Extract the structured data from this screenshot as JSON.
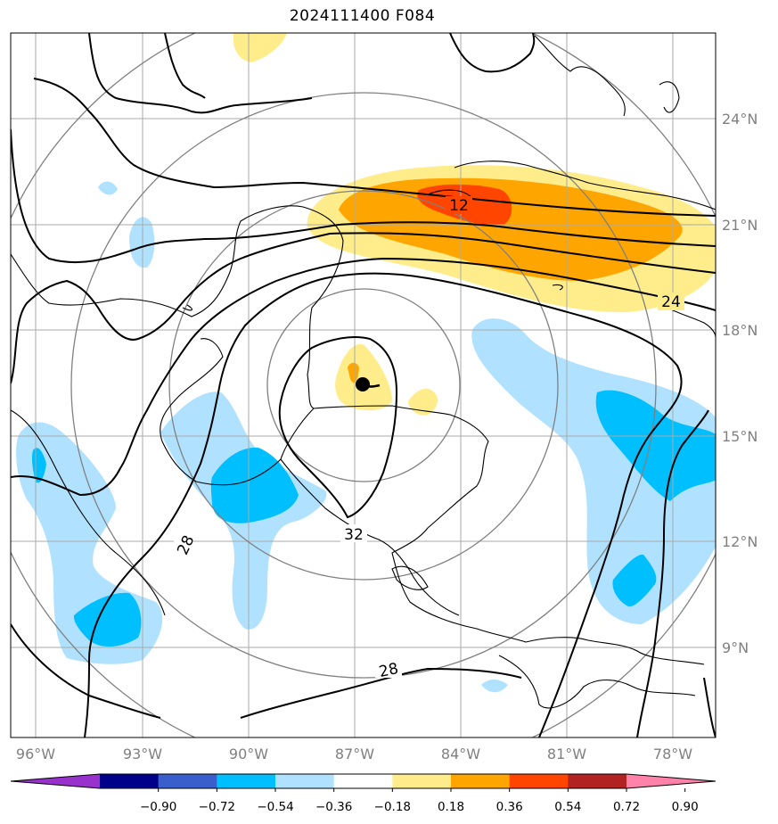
{
  "title": "2024111400 F084",
  "map": {
    "lon_labels": [
      "96°W",
      "93°W",
      "90°W",
      "87°W",
      "84°W",
      "81°W",
      "78°W"
    ],
    "lat_labels": [
      "24°N",
      "21°N",
      "18°N",
      "15°N",
      "12°N",
      "9°N"
    ],
    "contour_labels": [
      "12",
      "24",
      "28",
      "32",
      "28"
    ],
    "storm_marker": "black-dot"
  },
  "colorbar": {
    "ticks": [
      "−0.90",
      "−0.72",
      "−0.54",
      "−0.36",
      "−0.18",
      "0.18",
      "0.36",
      "0.54",
      "0.72",
      "0.90"
    ],
    "colors": [
      "#9932cc",
      "#00008b",
      "#3a5fcd",
      "#00bfff",
      "#b0e2ff",
      "#ffffff",
      "#ffec8b",
      "#ffa500",
      "#ff4500",
      "#b22222",
      "#ff82ab"
    ]
  }
}
